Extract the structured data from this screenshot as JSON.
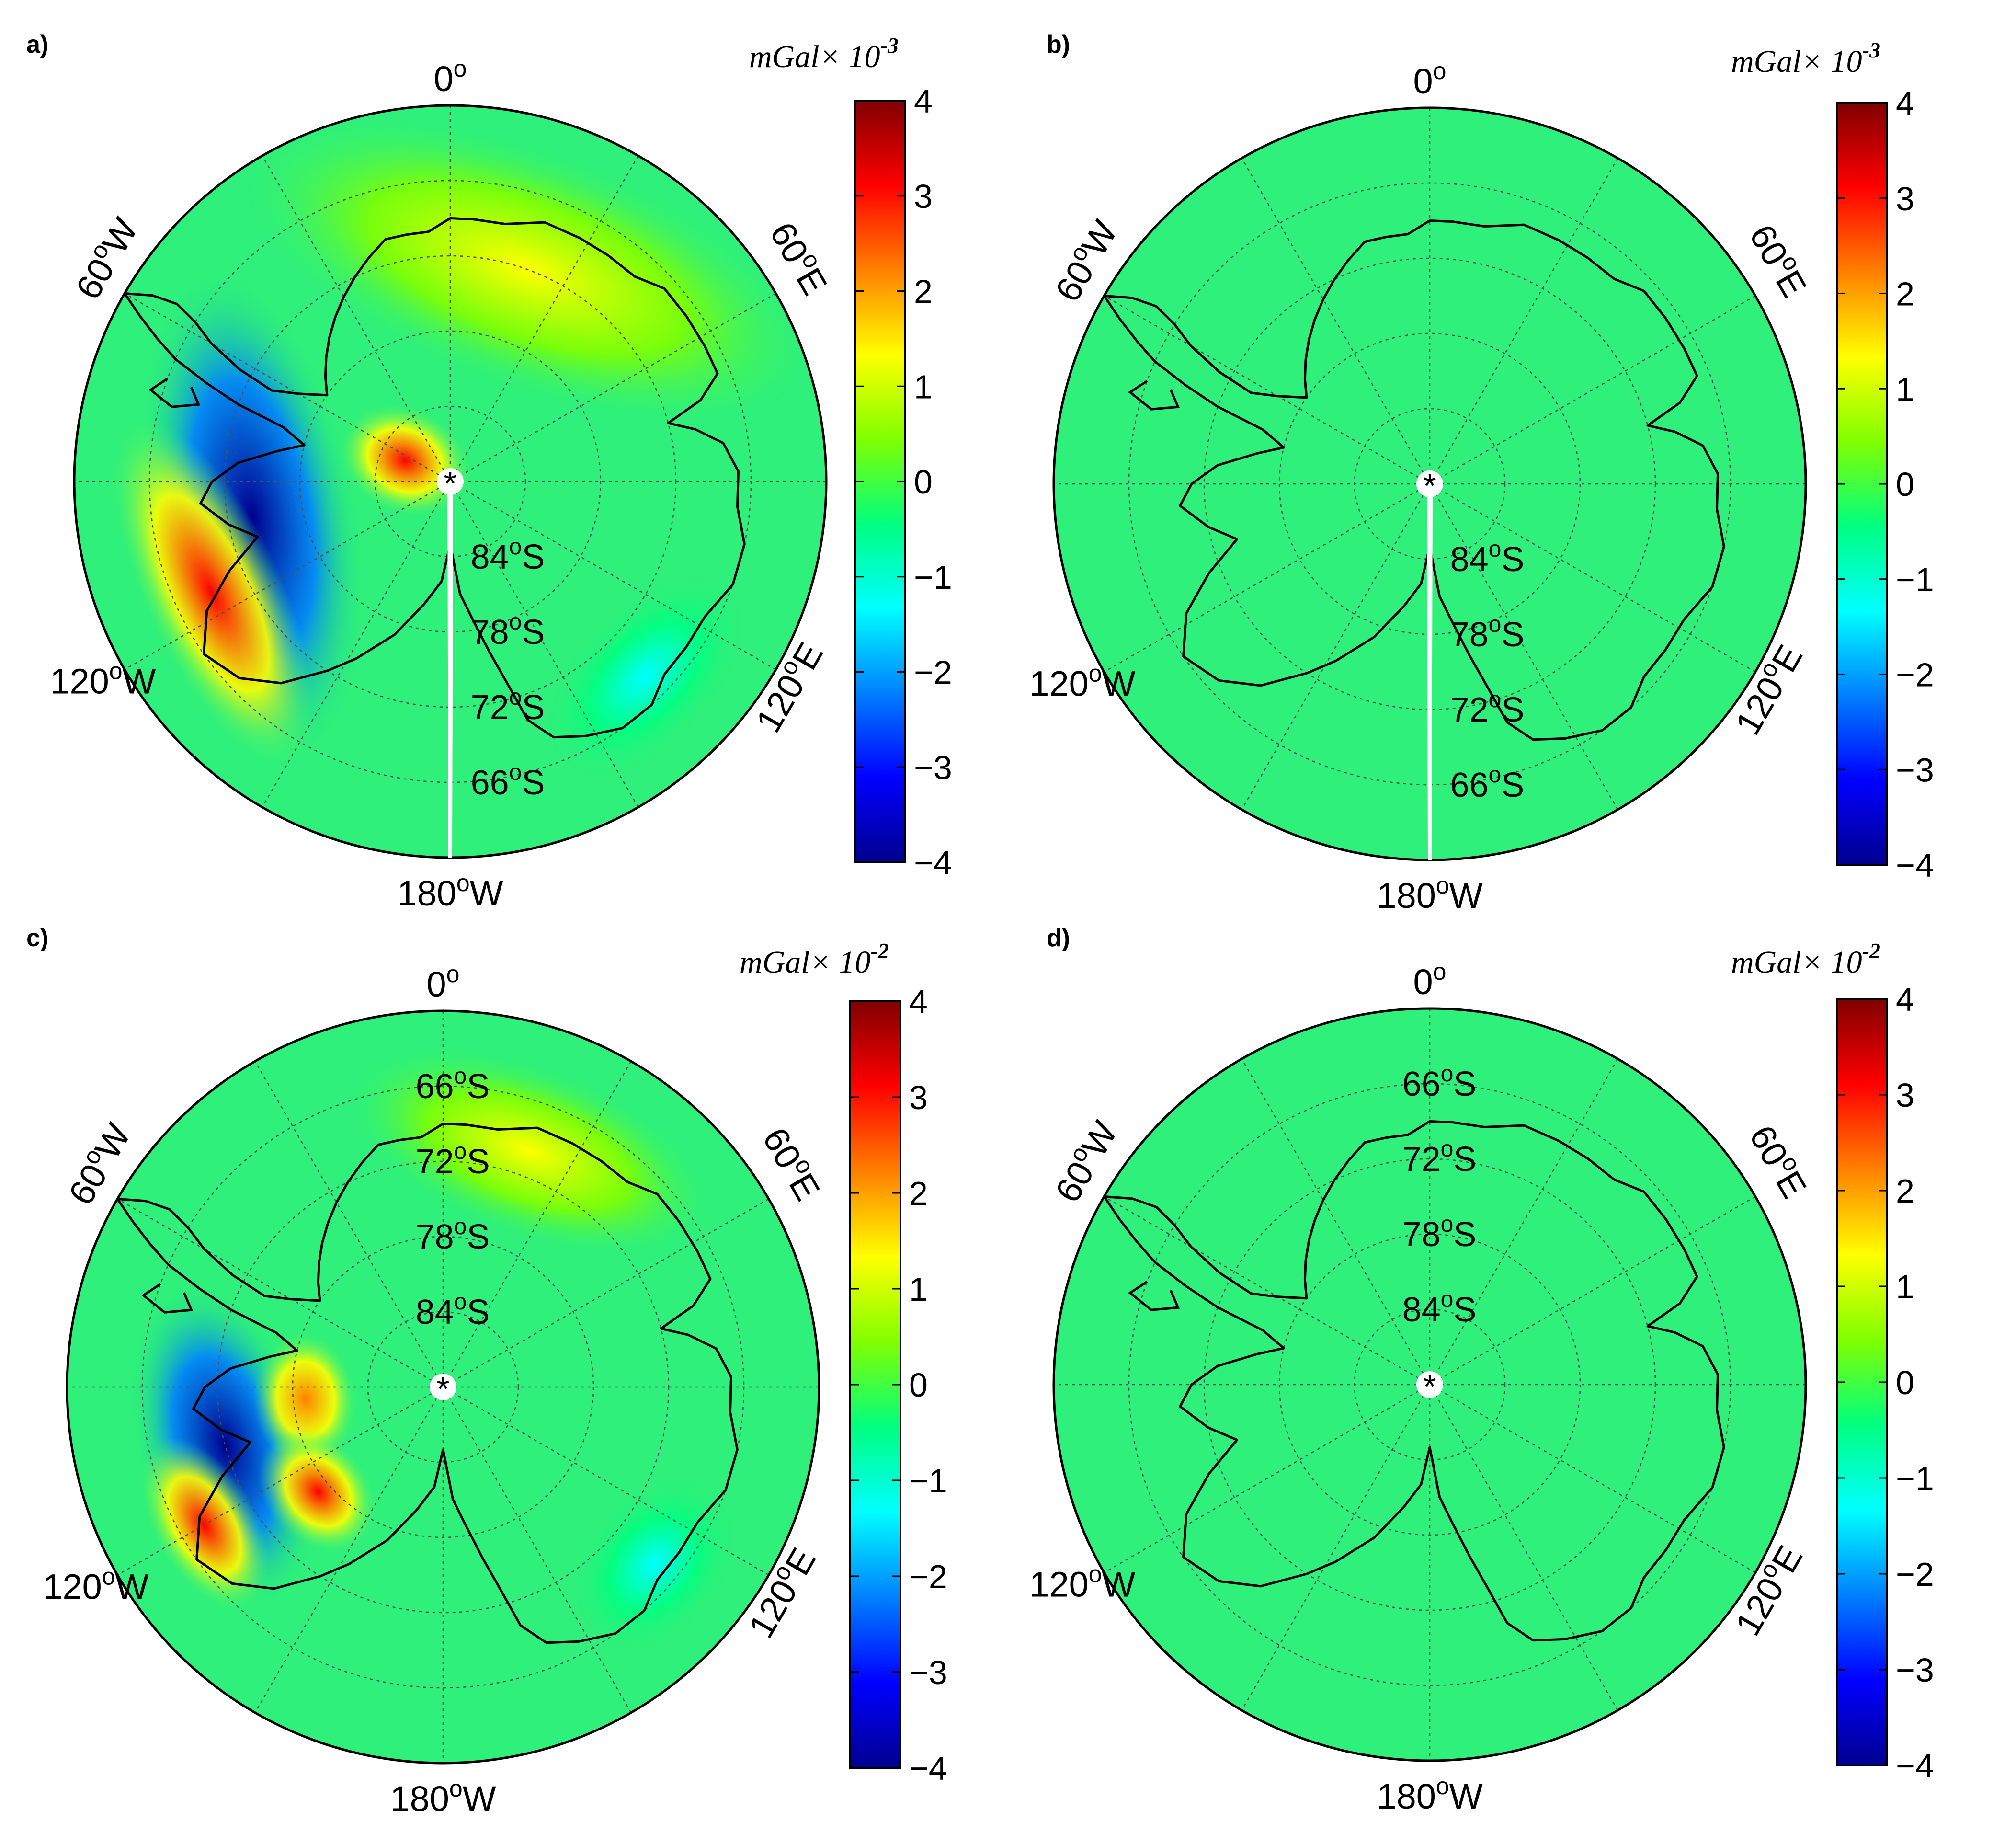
{
  "panels": [
    {
      "label": "a)",
      "unit": "mGal× 10",
      "unit_exp": "-3",
      "colorbar_ticks": [
        "4",
        "3",
        "2",
        "1",
        "0",
        "−1",
        "−2",
        "−3",
        "−4"
      ],
      "lon_labels": {
        "top": "0",
        "left_upper": "60",
        "left_upper_dir": "W",
        "left_lower": "120",
        "left_lower_dir": "W",
        "right_upper": "60",
        "right_upper_dir": "E",
        "right_lower": "120",
        "right_lower_dir": "E",
        "bottom": "180",
        "bottom_dir": "W"
      },
      "lat_labels": [
        {
          "value": "84",
          "dir": "S"
        },
        {
          "value": "78",
          "dir": "S"
        },
        {
          "value": "72",
          "dir": "S"
        },
        {
          "value": "66",
          "dir": "S"
        }
      ],
      "lat_side": "bottom",
      "features": [
        {
          "type": "blue",
          "lon": -100,
          "colat": 16,
          "rx": 6,
          "ry": 18,
          "level": -1.0
        },
        {
          "type": "red",
          "lon": -115,
          "colat": 21,
          "rx": 4,
          "ry": 14,
          "level": 0.7
        },
        {
          "type": "red",
          "lon": -65,
          "colat": 4,
          "rx": 4,
          "ry": 4,
          "level": 0.8
        },
        {
          "type": "yellow",
          "lon": 20,
          "colat": 18,
          "rx": 7,
          "ry": 22,
          "level": 0.25
        },
        {
          "type": "cyan",
          "lon": 135,
          "colat": 22,
          "rx": 4,
          "ry": 9,
          "level": -0.3
        }
      ]
    },
    {
      "label": "b)",
      "unit": "mGal× 10",
      "unit_exp": "-3",
      "colorbar_ticks": [
        "4",
        "3",
        "2",
        "1",
        "0",
        "−1",
        "−2",
        "−3",
        "−4"
      ],
      "lon_labels": {
        "top": "0",
        "left_upper": "60",
        "left_upper_dir": "W",
        "left_lower": "120",
        "left_lower_dir": "W",
        "right_upper": "60",
        "right_upper_dir": "E",
        "right_lower": "120",
        "right_lower_dir": "E",
        "bottom": "180",
        "bottom_dir": "W"
      },
      "lat_labels": [
        {
          "value": "84",
          "dir": "S"
        },
        {
          "value": "78",
          "dir": "S"
        },
        {
          "value": "72",
          "dir": "S"
        },
        {
          "value": "66",
          "dir": "S"
        }
      ],
      "lat_side": "bottom",
      "features": []
    },
    {
      "label": "c)",
      "unit": "mGal× 10",
      "unit_exp": "-2",
      "colorbar_ticks": [
        "4",
        "3",
        "2",
        "1",
        "0",
        "−1",
        "−2",
        "−3",
        "−4"
      ],
      "lon_labels": {
        "top": "0",
        "left_upper": "60",
        "left_upper_dir": "W",
        "left_lower": "120",
        "left_lower_dir": "W",
        "right_upper": "60",
        "right_upper_dir": "E",
        "right_lower": "120",
        "right_lower_dir": "E",
        "bottom": "180",
        "bottom_dir": "W"
      },
      "lat_labels": [
        {
          "value": "66",
          "dir": "S"
        },
        {
          "value": "72",
          "dir": "S"
        },
        {
          "value": "78",
          "dir": "S"
        },
        {
          "value": "84",
          "dir": "S"
        }
      ],
      "lat_side": "top",
      "features": [
        {
          "type": "blue",
          "lon": -105,
          "colat": 18,
          "rx": 5,
          "ry": 12,
          "level": -1.0
        },
        {
          "type": "red",
          "lon": -120,
          "colat": 22,
          "rx": 3,
          "ry": 7,
          "level": 0.7
        },
        {
          "type": "red",
          "lon": -95,
          "colat": 11,
          "rx": 3,
          "ry": 5,
          "level": 0.6
        },
        {
          "type": "red",
          "lon": -130,
          "colat": 13,
          "rx": 3,
          "ry": 5,
          "level": 0.7
        },
        {
          "type": "yellow",
          "lon": 20,
          "colat": 20,
          "rx": 5,
          "ry": 14,
          "level": 0.3
        },
        {
          "type": "cyan",
          "lon": 130,
          "colat": 22,
          "rx": 4,
          "ry": 7,
          "level": -0.3
        }
      ]
    },
    {
      "label": "d)",
      "unit": "mGal× 10",
      "unit_exp": "-2",
      "colorbar_ticks": [
        "4",
        "3",
        "2",
        "1",
        "0",
        "−1",
        "−2",
        "−3",
        "−4"
      ],
      "lon_labels": {
        "top": "0",
        "left_upper": "60",
        "left_upper_dir": "W",
        "left_lower": "120",
        "left_lower_dir": "W",
        "right_upper": "60",
        "right_upper_dir": "E",
        "right_lower": "120",
        "right_lower_dir": "E",
        "bottom": "180",
        "bottom_dir": "W"
      },
      "lat_labels": [
        {
          "value": "66",
          "dir": "S"
        },
        {
          "value": "72",
          "dir": "S"
        },
        {
          "value": "78",
          "dir": "S"
        },
        {
          "value": "84",
          "dir": "S"
        }
      ],
      "lat_side": "top",
      "features": []
    }
  ],
  "pole_marker": "*",
  "degree_symbol": "o",
  "colormap": [
    "#00008f",
    "#0000ff",
    "#0080ff",
    "#00ffff",
    "#00ff80",
    "#80ff00",
    "#ffff00",
    "#ff8000",
    "#ff0000",
    "#800000"
  ],
  "background_color": "#2ef07a",
  "coast_color": "#000000",
  "grid_color": "#505050"
}
